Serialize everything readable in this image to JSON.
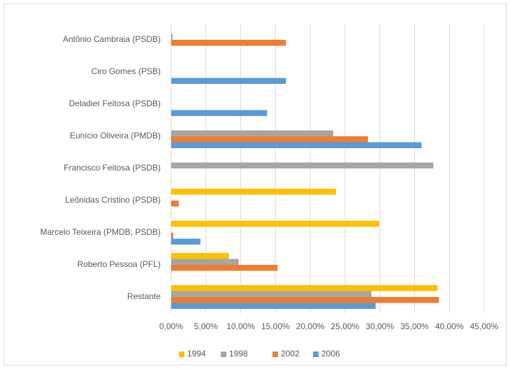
{
  "chart_data": {
    "type": "bar",
    "orientation": "horizontal",
    "categories": [
      "Antônio Cambraia (PSDB)",
      "Ciro Gomes (PSB)",
      "Deladier Feitosa (PSDB)",
      "Eunício Oliveira (PMDB)",
      "Francisco Feitosa (PSDB)",
      "Leônidas Cristino (PSDB)",
      "Marcelo Teixeira (PMDB; PSDB)",
      "Roberto Pessoa (PFL)",
      "Restante"
    ],
    "series": [
      {
        "name": "1994",
        "color": "#ffc000",
        "values": [
          null,
          null,
          null,
          null,
          null,
          23.7,
          29.9,
          8.3,
          38.3
        ]
      },
      {
        "name": "1998",
        "color": "#a5a5a5",
        "values": [
          0.2,
          null,
          null,
          23.3,
          37.7,
          null,
          null,
          9.7,
          28.8
        ]
      },
      {
        "name": "2002",
        "color": "#ed7d31",
        "values": [
          16.5,
          null,
          null,
          28.3,
          null,
          1.1,
          0.3,
          15.3,
          38.5
        ]
      },
      {
        "name": "2006",
        "color": "#5b9bd5",
        "values": [
          null,
          16.5,
          13.8,
          36.0,
          null,
          null,
          4.2,
          null,
          29.4
        ]
      }
    ],
    "xlim": [
      0,
      45
    ],
    "xticks": [
      {
        "value": 0,
        "label": "0,00%"
      },
      {
        "value": 5,
        "label": "5,00%"
      },
      {
        "value": 10,
        "label": "10,00%"
      },
      {
        "value": 15,
        "label": "15,00%"
      },
      {
        "value": 20,
        "label": "20,00%"
      },
      {
        "value": 25,
        "label": "25,00%"
      },
      {
        "value": 30,
        "label": "30,00%"
      },
      {
        "value": 35,
        "label": "35,00%"
      },
      {
        "value": 40,
        "label": "40,00%"
      },
      {
        "value": 45,
        "label": "45,00%"
      }
    ],
    "grid": true,
    "legend": "bottom"
  }
}
